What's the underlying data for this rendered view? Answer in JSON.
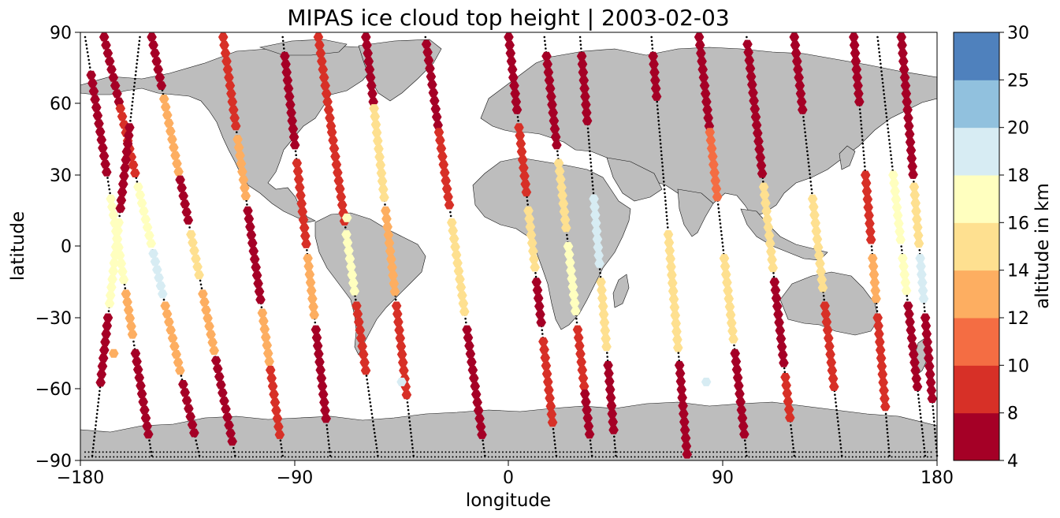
{
  "title": "MIPAS ice cloud top height | 2003-02-03",
  "xlabel": "longitude",
  "ylabel": "latitude",
  "colorbar_label": "altitude in km",
  "x_ticks": [
    "−180",
    "−90",
    "0",
    "90",
    "180"
  ],
  "y_ticks": [
    "90",
    "60",
    "30",
    "0",
    "−30",
    "−60",
    "−90"
  ],
  "colorbar_ticks": [
    "4",
    "8",
    "10",
    "12",
    "14",
    "16",
    "18",
    "20",
    "25",
    "30"
  ],
  "colors": {
    "land": "#bdbdbd",
    "coastline": "#111111",
    "track_dots": "#000000",
    "levels": [
      "#a50026",
      "#d73027",
      "#f46d43",
      "#fdae61",
      "#fee090",
      "#ffffbf",
      "#e0f3f8",
      "#abd9e9",
      "#74add1",
      "#4575b4",
      "#313695"
    ]
  },
  "chart_data": {
    "type": "scatter",
    "title": "MIPAS ice cloud top height | 2003-02-03",
    "xlabel": "longitude",
    "ylabel": "latitude",
    "xlim": [
      -180,
      180
    ],
    "ylim": [
      -90,
      90
    ],
    "marker": "hexagon",
    "colorbar": {
      "label": "altitude in km",
      "boundaries": [
        4,
        8,
        10,
        12,
        14,
        16,
        18,
        20,
        25,
        30
      ],
      "colors": [
        "#a50026",
        "#d73027",
        "#f46d43",
        "#fdae61",
        "#fee090",
        "#ffffbf",
        "#d7ecf3",
        "#91c1de",
        "#4f81bd",
        "#313695"
      ]
    },
    "orbit_tracks": [
      {
        "lon_north": -170,
        "lon_south": -130,
        "segments": [
          {
            "lat": [
              88,
              60
            ],
            "alt": 6
          },
          {
            "lat": [
              58,
              30
            ],
            "alt": 8
          },
          {
            "lat": [
              25,
              0
            ],
            "alt": 17
          },
          {
            "lat": [
              -3,
              -20
            ],
            "alt": 19
          },
          {
            "lat": [
              -25,
              -55
            ],
            "alt": 13
          },
          {
            "lat": [
              -58,
              -80
            ],
            "alt": 6
          }
        ]
      },
      {
        "lon_north": -178,
        "lon_south": -150,
        "segments": [
          {
            "lat": [
              72,
              30
            ],
            "alt": 6
          },
          {
            "lat": [
              20,
              -15
            ],
            "alt": 17
          },
          {
            "lat": [
              -20,
              -40
            ],
            "alt": 13
          },
          {
            "lat": [
              -45,
              -80
            ],
            "alt": 6
          }
        ]
      },
      {
        "lon_north": -150,
        "lon_south": -115,
        "segments": [
          {
            "lat": [
              88,
              65
            ],
            "alt": 6
          },
          {
            "lat": [
              62,
              30
            ],
            "alt": 12
          },
          {
            "lat": [
              28,
              10
            ],
            "alt": 6
          },
          {
            "lat": [
              5,
              -15
            ],
            "alt": 15
          },
          {
            "lat": [
              -20,
              -45
            ],
            "alt": 13
          },
          {
            "lat": [
              -48,
              -82
            ],
            "alt": 6
          }
        ]
      },
      {
        "lon_north": -155,
        "lon_south": -175,
        "segments": [
          {
            "lat": [
              50,
              15
            ],
            "alt": 6
          },
          {
            "lat": [
              10,
              -25
            ],
            "alt": 16
          },
          {
            "lat": [
              -30,
              -60
            ],
            "alt": 6
          }
        ]
      },
      {
        "lon_north": -120,
        "lon_south": -95,
        "segments": [
          {
            "lat": [
              88,
              50
            ],
            "alt": 8
          },
          {
            "lat": [
              45,
              20
            ],
            "alt": 13
          },
          {
            "lat": [
              15,
              -25
            ],
            "alt": 6
          },
          {
            "lat": [
              -28,
              -50
            ],
            "alt": 12
          },
          {
            "lat": [
              -52,
              -80
            ],
            "alt": 8
          }
        ]
      },
      {
        "lon_north": -95,
        "lon_south": -75,
        "segments": [
          {
            "lat": [
              80,
              40
            ],
            "alt": 6
          },
          {
            "lat": [
              35,
              0
            ],
            "alt": 9
          },
          {
            "lat": [
              -5,
              -30
            ],
            "alt": 13
          },
          {
            "lat": [
              -35,
              -75
            ],
            "alt": 6
          }
        ]
      },
      {
        "lon_north": -80,
        "lon_south": -55,
        "segments": [
          {
            "lat": [
              88,
              50
            ],
            "alt": 8
          },
          {
            "lat": [
              48,
              10
            ],
            "alt": 8
          },
          {
            "lat": [
              5,
              -20
            ],
            "alt": 17
          },
          {
            "lat": [
              -25,
              -55
            ],
            "alt": 8
          }
        ]
      },
      {
        "lon_north": -60,
        "lon_south": -40,
        "segments": [
          {
            "lat": [
              88,
              60
            ],
            "alt": 6
          },
          {
            "lat": [
              58,
              20
            ],
            "alt": 15
          },
          {
            "lat": [
              15,
              -20
            ],
            "alt": 13
          },
          {
            "lat": [
              -25,
              -65
            ],
            "alt": 9
          }
        ]
      },
      {
        "lon_north": -35,
        "lon_south": -10,
        "segments": [
          {
            "lat": [
              85,
              50
            ],
            "alt": 6
          },
          {
            "lat": [
              48,
              15
            ],
            "alt": 8
          },
          {
            "lat": [
              10,
              -30
            ],
            "alt": 15
          },
          {
            "lat": [
              -35,
              -80
            ],
            "alt": 6
          }
        ]
      },
      {
        "lon_north": 0,
        "lon_south": 20,
        "segments": [
          {
            "lat": [
              88,
              55
            ],
            "alt": 6
          },
          {
            "lat": [
              50,
              20
            ],
            "alt": 8
          },
          {
            "lat": [
              15,
              -10
            ],
            "alt": 15
          },
          {
            "lat": [
              -15,
              -35
            ],
            "alt": 6
          },
          {
            "lat": [
              -40,
              -75
            ],
            "alt": 8
          }
        ]
      },
      {
        "lon_north": 15,
        "lon_south": 35,
        "segments": [
          {
            "lat": [
              80,
              40
            ],
            "alt": 6
          },
          {
            "lat": [
              35,
              5
            ],
            "alt": 14
          },
          {
            "lat": [
              0,
              -30
            ],
            "alt": 17
          },
          {
            "lat": [
              -35,
              -60
            ],
            "alt": 9
          },
          {
            "lat": [
              -62,
              -82
            ],
            "alt": 6
          }
        ]
      },
      {
        "lon_north": 30,
        "lon_south": 45,
        "segments": [
          {
            "lat": [
              80,
              50
            ],
            "alt": 6
          },
          {
            "lat": [
              20,
              -10
            ],
            "alt": 19
          },
          {
            "lat": [
              -15,
              -45
            ],
            "alt": 14
          },
          {
            "lat": [
              -50,
              -80
            ],
            "alt": 6
          }
        ]
      },
      {
        "lon_north": 60,
        "lon_south": 75,
        "segments": [
          {
            "lat": [
              80,
              60
            ],
            "alt": 6
          },
          {
            "lat": [
              5,
              -45
            ],
            "alt": 15
          },
          {
            "lat": [
              -50,
              -88
            ],
            "alt": 6
          }
        ]
      },
      {
        "lon_north": 80,
        "lon_south": 100,
        "segments": [
          {
            "lat": [
              88,
              50
            ],
            "alt": 6
          },
          {
            "lat": [
              48,
              20
            ],
            "alt": 10
          },
          {
            "lat": [
              -5,
              -40
            ],
            "alt": 14
          },
          {
            "lat": [
              -45,
              -80
            ],
            "alt": 6
          }
        ]
      },
      {
        "lon_north": 100,
        "lon_south": 120,
        "segments": [
          {
            "lat": [
              85,
              30
            ],
            "alt": 6
          },
          {
            "lat": [
              25,
              -10
            ],
            "alt": 15
          },
          {
            "lat": [
              -15,
              -50
            ],
            "alt": 6
          },
          {
            "lat": [
              -55,
              -75
            ],
            "alt": 9
          }
        ]
      },
      {
        "lon_north": 120,
        "lon_south": 140,
        "segments": [
          {
            "lat": [
              88,
              55
            ],
            "alt": 6
          },
          {
            "lat": [
              20,
              -20
            ],
            "alt": 15
          },
          {
            "lat": [
              -25,
              -60
            ],
            "alt": 8
          }
        ]
      },
      {
        "lon_north": 145,
        "lon_south": 160,
        "segments": [
          {
            "lat": [
              88,
              60
            ],
            "alt": 6
          },
          {
            "lat": [
              30,
              0
            ],
            "alt": 8
          },
          {
            "lat": [
              -5,
              -25
            ],
            "alt": 13
          },
          {
            "lat": [
              -30,
              -70
            ],
            "alt": 9
          }
        ]
      },
      {
        "lon_north": 155,
        "lon_south": 175,
        "segments": [
          {
            "lat": [
              30,
              0
            ],
            "alt": 17
          },
          {
            "lat": [
              -5,
              -20
            ],
            "alt": 16
          },
          {
            "lat": [
              -25,
              -60
            ],
            "alt": 6
          }
        ]
      },
      {
        "lon_north": 165,
        "lon_south": 180,
        "segments": [
          {
            "lat": [
              88,
              30
            ],
            "alt": 6
          },
          {
            "lat": [
              25,
              0
            ],
            "alt": 15
          },
          {
            "lat": [
              -5,
              -25
            ],
            "alt": 19
          },
          {
            "lat": [
              -30,
              -65
            ],
            "alt": 6
          }
        ]
      }
    ],
    "isolated_points": [
      {
        "lon": -45,
        "lat": -57,
        "alt": 19
      },
      {
        "lon": 83,
        "lat": -57,
        "alt": 19
      },
      {
        "lon": -68,
        "lat": 12,
        "alt": 17
      },
      {
        "lon": -166,
        "lat": -45,
        "alt": 13
      }
    ]
  }
}
